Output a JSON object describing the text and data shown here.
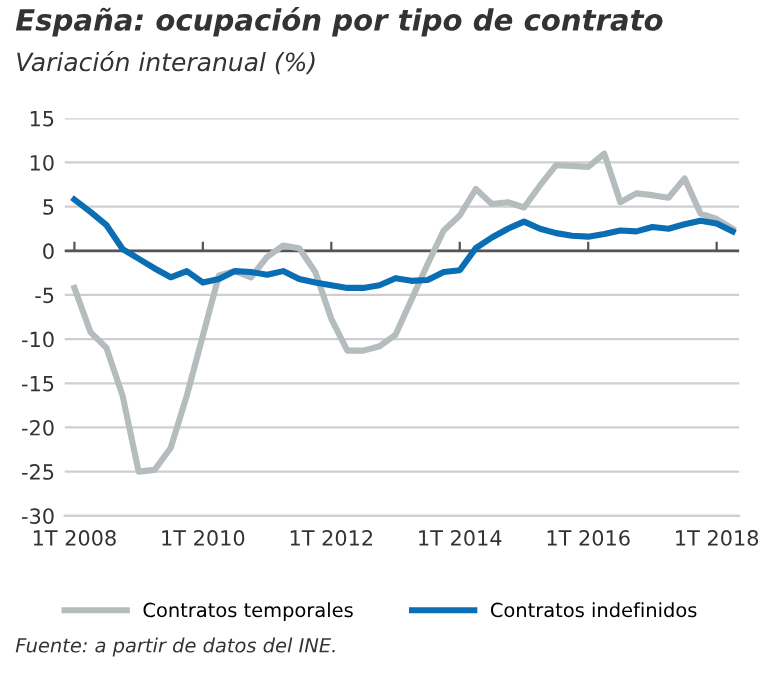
{
  "chart_data": {
    "type": "line",
    "title": "España: ocupación por tipo de contrato",
    "subtitle": "Variación interanual (%)",
    "categories": [
      "1T 2008",
      null,
      null,
      null,
      null,
      null,
      null,
      null,
      "1T 2010",
      null,
      null,
      null,
      null,
      null,
      null,
      null,
      "1T 2012",
      null,
      null,
      null,
      null,
      null,
      null,
      null,
      "1T 2014",
      null,
      null,
      null,
      null,
      null,
      null,
      null,
      "1T 2016",
      null,
      null,
      null,
      null,
      null,
      null,
      null,
      "1T 2018",
      null
    ],
    "series": [
      {
        "name": "Contratos temporales",
        "color": "#b4bcbd",
        "values": [
          -4.2,
          -9.2,
          -11,
          -16.4,
          -25,
          -24.8,
          -22.3,
          -16.4,
          -9.6,
          -2.8,
          -2.3,
          -3,
          -0.7,
          0.6,
          0.3,
          -2.4,
          -7.7,
          -11.3,
          -11.3,
          -10.8,
          -9.5,
          -5.5,
          -1.5,
          2.3,
          4.0,
          7.0,
          5.3,
          5.5,
          4.9,
          7.4,
          9.7,
          9.6,
          9.5,
          11.0,
          5.5,
          6.5,
          6.3,
          6.0,
          8.2,
          4.2,
          3.6,
          2.5
        ]
      },
      {
        "name": "Contratos indefinidos",
        "color": "#0a6eb4",
        "values": [
          5.8,
          4.4,
          2.9,
          0.2,
          -0.9,
          -2.0,
          -3.0,
          -2.3,
          -3.6,
          -3.2,
          -2.3,
          -2.4,
          -2.7,
          -2.3,
          -3.2,
          -3.6,
          -3.9,
          -4.2,
          -4.2,
          -3.9,
          -3.1,
          -3.4,
          -3.3,
          -2.4,
          -2.2,
          0.3,
          1.5,
          2.5,
          3.3,
          2.5,
          2.0,
          1.7,
          1.6,
          1.9,
          2.3,
          2.2,
          2.7,
          2.5,
          3.0,
          3.4,
          3.1,
          2.2
        ]
      }
    ],
    "ylim": [
      -30,
      15
    ],
    "yticks": [
      -30,
      -25,
      -20,
      -15,
      -10,
      -5,
      0,
      5,
      10,
      15
    ],
    "grid": "y",
    "legend": "bottom",
    "marker": "none",
    "line_style": "solid",
    "ref_lines": [
      {
        "axis": "y",
        "value": 0,
        "color": "#555555"
      }
    ],
    "annotations": [
      "Fuente: a partir de datos del INE."
    ]
  }
}
